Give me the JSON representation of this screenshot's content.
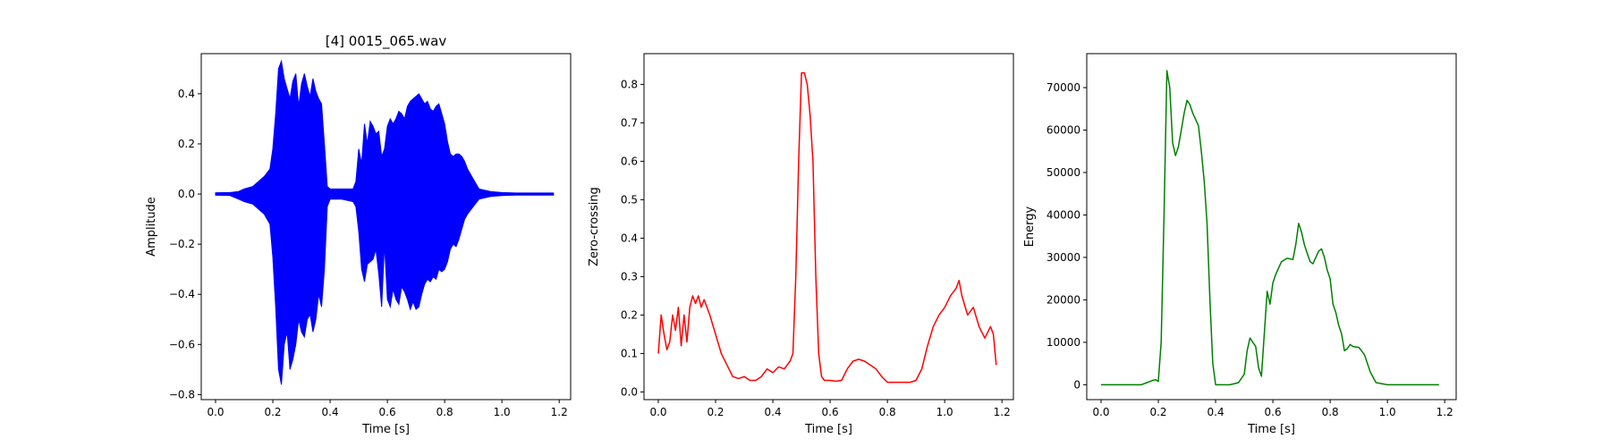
{
  "chart_data": [
    {
      "type": "line",
      "title": "[4] 0015_065.wav",
      "xlabel": "Time [s]",
      "ylabel": "Amplitude",
      "xlim": [
        -0.05,
        1.24
      ],
      "ylim": [
        -0.82,
        0.56
      ],
      "xticks": [
        0.0,
        0.2,
        0.4,
        0.6,
        0.8,
        1.0,
        1.2
      ],
      "xtick_labels": [
        "0.0",
        "0.2",
        "0.4",
        "0.6",
        "0.8",
        "1.0",
        "1.2"
      ],
      "yticks": [
        -0.8,
        -0.6,
        -0.4,
        -0.2,
        0.0,
        0.2,
        0.4
      ],
      "ytick_labels": [
        "−0.8",
        "−0.6",
        "−0.4",
        "−0.2",
        "0.0",
        "0.2",
        "0.4"
      ],
      "color": "#0000ff",
      "grid": false,
      "series": [
        {
          "style": "waveform",
          "x": [
            0.0,
            0.05,
            0.08,
            0.1,
            0.13,
            0.15,
            0.17,
            0.19,
            0.2,
            0.21,
            0.22,
            0.23,
            0.24,
            0.25,
            0.26,
            0.27,
            0.28,
            0.29,
            0.3,
            0.31,
            0.32,
            0.33,
            0.34,
            0.35,
            0.36,
            0.37,
            0.38,
            0.39,
            0.4,
            0.44,
            0.48,
            0.49,
            0.5,
            0.51,
            0.52,
            0.53,
            0.54,
            0.55,
            0.56,
            0.57,
            0.58,
            0.59,
            0.6,
            0.61,
            0.62,
            0.63,
            0.64,
            0.65,
            0.66,
            0.67,
            0.68,
            0.69,
            0.7,
            0.71,
            0.72,
            0.73,
            0.74,
            0.75,
            0.76,
            0.77,
            0.78,
            0.79,
            0.8,
            0.81,
            0.82,
            0.83,
            0.84,
            0.85,
            0.86,
            0.87,
            0.88,
            0.9,
            0.92,
            0.96,
            1.0,
            1.05,
            1.1,
            1.15,
            1.18
          ],
          "upper": [
            0.005,
            0.006,
            0.01,
            0.02,
            0.03,
            0.05,
            0.07,
            0.1,
            0.18,
            0.32,
            0.5,
            0.53,
            0.46,
            0.42,
            0.38,
            0.45,
            0.48,
            0.35,
            0.44,
            0.48,
            0.43,
            0.39,
            0.46,
            0.41,
            0.38,
            0.36,
            0.2,
            0.03,
            0.02,
            0.02,
            0.02,
            0.05,
            0.18,
            0.12,
            0.28,
            0.2,
            0.29,
            0.27,
            0.24,
            0.25,
            0.15,
            0.18,
            0.27,
            0.3,
            0.28,
            0.3,
            0.33,
            0.32,
            0.3,
            0.35,
            0.37,
            0.38,
            0.39,
            0.4,
            0.38,
            0.36,
            0.37,
            0.34,
            0.33,
            0.35,
            0.36,
            0.32,
            0.28,
            0.21,
            0.16,
            0.15,
            0.16,
            0.16,
            0.15,
            0.13,
            0.1,
            0.06,
            0.02,
            0.01,
            0.006,
            0.004,
            0.004,
            0.004,
            0.004
          ],
          "lower": [
            -0.005,
            -0.006,
            -0.02,
            -0.03,
            -0.04,
            -0.06,
            -0.08,
            -0.12,
            -0.25,
            -0.45,
            -0.7,
            -0.76,
            -0.6,
            -0.55,
            -0.7,
            -0.66,
            -0.6,
            -0.5,
            -0.55,
            -0.57,
            -0.5,
            -0.48,
            -0.55,
            -0.5,
            -0.4,
            -0.45,
            -0.3,
            -0.05,
            -0.02,
            -0.02,
            -0.03,
            -0.05,
            -0.15,
            -0.3,
            -0.35,
            -0.28,
            -0.27,
            -0.26,
            -0.22,
            -0.32,
            -0.45,
            -0.2,
            -0.42,
            -0.45,
            -0.38,
            -0.42,
            -0.44,
            -0.37,
            -0.39,
            -0.42,
            -0.46,
            -0.43,
            -0.46,
            -0.45,
            -0.4,
            -0.36,
            -0.34,
            -0.35,
            -0.33,
            -0.34,
            -0.3,
            -0.31,
            -0.3,
            -0.27,
            -0.22,
            -0.2,
            -0.21,
            -0.18,
            -0.14,
            -0.1,
            -0.08,
            -0.05,
            -0.02,
            -0.01,
            -0.006,
            -0.004,
            -0.004,
            -0.004,
            -0.004
          ]
        }
      ]
    },
    {
      "type": "line",
      "title": "",
      "xlabel": "Time [s]",
      "ylabel": "Zero-crossing",
      "xlim": [
        -0.05,
        1.24
      ],
      "ylim": [
        -0.02,
        0.88
      ],
      "xticks": [
        0.0,
        0.2,
        0.4,
        0.6,
        0.8,
        1.0,
        1.2
      ],
      "xtick_labels": [
        "0.0",
        "0.2",
        "0.4",
        "0.6",
        "0.8",
        "1.0",
        "1.2"
      ],
      "yticks": [
        0.0,
        0.1,
        0.2,
        0.3,
        0.4,
        0.5,
        0.6,
        0.7,
        0.8
      ],
      "ytick_labels": [
        "0.0",
        "0.1",
        "0.2",
        "0.3",
        "0.4",
        "0.5",
        "0.6",
        "0.7",
        "0.8"
      ],
      "color": "#ff0000",
      "grid": false,
      "series": [
        {
          "x": [
            0.0,
            0.01,
            0.02,
            0.03,
            0.04,
            0.05,
            0.06,
            0.07,
            0.08,
            0.09,
            0.1,
            0.11,
            0.12,
            0.13,
            0.14,
            0.15,
            0.16,
            0.17,
            0.18,
            0.2,
            0.22,
            0.24,
            0.26,
            0.28,
            0.3,
            0.32,
            0.34,
            0.36,
            0.38,
            0.4,
            0.42,
            0.44,
            0.46,
            0.47,
            0.48,
            0.49,
            0.5,
            0.51,
            0.52,
            0.53,
            0.54,
            0.55,
            0.56,
            0.57,
            0.58,
            0.6,
            0.62,
            0.64,
            0.66,
            0.68,
            0.7,
            0.72,
            0.74,
            0.76,
            0.78,
            0.8,
            0.82,
            0.84,
            0.86,
            0.88,
            0.9,
            0.92,
            0.94,
            0.96,
            0.98,
            1.0,
            1.02,
            1.04,
            1.05,
            1.06,
            1.08,
            1.1,
            1.12,
            1.14,
            1.16,
            1.17,
            1.18
          ],
          "y": [
            0.1,
            0.2,
            0.15,
            0.11,
            0.13,
            0.2,
            0.16,
            0.22,
            0.12,
            0.2,
            0.13,
            0.22,
            0.25,
            0.23,
            0.25,
            0.22,
            0.24,
            0.22,
            0.2,
            0.15,
            0.1,
            0.07,
            0.04,
            0.035,
            0.04,
            0.03,
            0.03,
            0.04,
            0.06,
            0.05,
            0.065,
            0.06,
            0.08,
            0.1,
            0.3,
            0.6,
            0.83,
            0.83,
            0.8,
            0.72,
            0.6,
            0.3,
            0.1,
            0.04,
            0.03,
            0.03,
            0.028,
            0.03,
            0.06,
            0.08,
            0.085,
            0.08,
            0.07,
            0.06,
            0.04,
            0.025,
            0.025,
            0.025,
            0.025,
            0.025,
            0.03,
            0.06,
            0.12,
            0.17,
            0.2,
            0.22,
            0.25,
            0.27,
            0.29,
            0.25,
            0.2,
            0.22,
            0.17,
            0.14,
            0.17,
            0.15,
            0.07
          ]
        }
      ]
    },
    {
      "type": "line",
      "title": "",
      "xlabel": "Time [s]",
      "ylabel": "Energy",
      "xlim": [
        -0.05,
        1.24
      ],
      "ylim": [
        -3500,
        78000
      ],
      "xticks": [
        0.0,
        0.2,
        0.4,
        0.6,
        0.8,
        1.0,
        1.2
      ],
      "xtick_labels": [
        "0.0",
        "0.2",
        "0.4",
        "0.6",
        "0.8",
        "1.0",
        "1.2"
      ],
      "yticks": [
        0,
        10000,
        20000,
        30000,
        40000,
        50000,
        60000,
        70000
      ],
      "ytick_labels": [
        "0",
        "10000",
        "20000",
        "30000",
        "40000",
        "50000",
        "60000",
        "70000"
      ],
      "color": "#008000",
      "grid": false,
      "series": [
        {
          "x": [
            0.0,
            0.1,
            0.14,
            0.16,
            0.18,
            0.19,
            0.2,
            0.21,
            0.22,
            0.23,
            0.24,
            0.25,
            0.26,
            0.27,
            0.28,
            0.29,
            0.3,
            0.31,
            0.32,
            0.34,
            0.35,
            0.36,
            0.37,
            0.38,
            0.39,
            0.4,
            0.45,
            0.48,
            0.5,
            0.51,
            0.52,
            0.53,
            0.54,
            0.55,
            0.56,
            0.57,
            0.58,
            0.59,
            0.6,
            0.61,
            0.63,
            0.65,
            0.67,
            0.68,
            0.69,
            0.7,
            0.71,
            0.72,
            0.73,
            0.74,
            0.75,
            0.76,
            0.77,
            0.78,
            0.79,
            0.8,
            0.81,
            0.82,
            0.83,
            0.84,
            0.85,
            0.86,
            0.87,
            0.88,
            0.9,
            0.91,
            0.92,
            0.94,
            0.96,
            1.0,
            1.05,
            1.1,
            1.18
          ],
          "y": [
            0,
            0,
            0,
            500,
            1000,
            1200,
            800,
            10000,
            40000,
            74000,
            70000,
            57000,
            54000,
            56000,
            60000,
            64000,
            67000,
            66000,
            64000,
            61000,
            55000,
            48000,
            38000,
            20000,
            5000,
            0,
            0,
            500,
            2500,
            8000,
            11000,
            10000,
            9000,
            4000,
            2000,
            12000,
            22000,
            19000,
            24000,
            26000,
            29000,
            29800,
            29500,
            33000,
            38000,
            36000,
            33000,
            31000,
            29000,
            28500,
            30000,
            31500,
            32000,
            30000,
            27000,
            25000,
            19000,
            17000,
            14000,
            12000,
            8000,
            8500,
            9500,
            9000,
            8800,
            8000,
            7000,
            3000,
            500,
            0,
            0,
            0,
            0
          ]
        }
      ]
    }
  ]
}
